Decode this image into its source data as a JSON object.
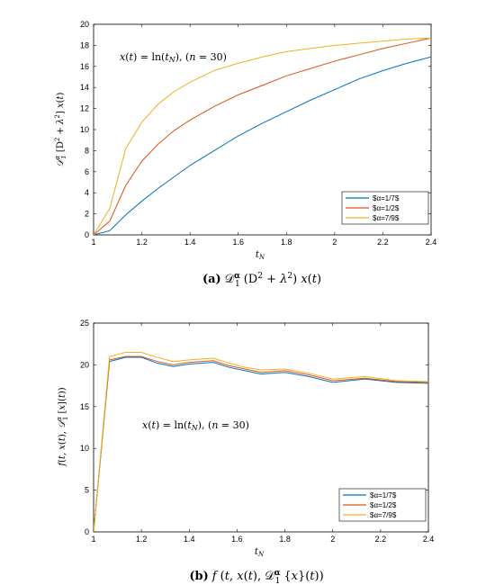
{
  "colors": {
    "blue": "#0072BD",
    "red": "#D95319",
    "yellow": "#EDB120",
    "axis": "#000000",
    "background": "#ffffff"
  },
  "chart_data": [
    {
      "type": "line",
      "annotation": "x(t) = ln(t_N),   (n = 30)",
      "ylabel": "D_1^α (D² + λ²) x(t)",
      "xlabel": "t_N",
      "caption_tag": "(a)",
      "caption_text": "D_1^α (D² + λ²) x(t)",
      "xlim": [
        1,
        2.4
      ],
      "ylim": [
        0,
        20
      ],
      "xticks": [
        1,
        1.2,
        1.4,
        1.6,
        1.8,
        2,
        2.2,
        2.4
      ],
      "xticklabels": [
        "1",
        "1.2",
        "1.4",
        "1.6",
        "1.8",
        "2",
        "2.2",
        "2.4"
      ],
      "yticks": [
        0,
        2,
        4,
        6,
        8,
        10,
        12,
        14,
        16,
        18,
        20
      ],
      "yticklabels": [
        "0",
        "2",
        "4",
        "6",
        "8",
        "10",
        "12",
        "14",
        "16",
        "18",
        "20"
      ],
      "legend_position": "bottom-right",
      "series": [
        {
          "name": "$\\alpha=1/7$",
          "color": "#0072BD",
          "x": [
            1,
            1.0667,
            1.1333,
            1.2,
            1.2667,
            1.3333,
            1.4,
            1.5,
            1.6,
            1.7,
            1.8,
            1.9,
            2,
            2.1,
            2.2,
            2.3,
            2.4
          ],
          "y": [
            0,
            0.4,
            1.9,
            3.2,
            4.4,
            5.5,
            6.6,
            8.0,
            9.4,
            10.6,
            11.7,
            12.8,
            13.8,
            14.8,
            15.6,
            16.3,
            16.9
          ]
        },
        {
          "name": "$\\alpha=1/2$",
          "color": "#D95319",
          "x": [
            1,
            1.0667,
            1.1333,
            1.2,
            1.2667,
            1.3333,
            1.4,
            1.5,
            1.6,
            1.7,
            1.8,
            1.9,
            2,
            2.1,
            2.2,
            2.3,
            2.4
          ],
          "y": [
            0,
            1.3,
            4.7,
            7.0,
            8.6,
            9.9,
            10.9,
            12.2,
            13.3,
            14.2,
            15.1,
            15.8,
            16.5,
            17.1,
            17.7,
            18.2,
            18.7
          ]
        },
        {
          "name": "$\\alpha=7/9$",
          "color": "#EDB120",
          "x": [
            1,
            1.0667,
            1.1333,
            1.2,
            1.2667,
            1.3333,
            1.4,
            1.5,
            1.6,
            1.7,
            1.8,
            1.9,
            2,
            2.1,
            2.2,
            2.3,
            2.4
          ],
          "y": [
            0,
            2.5,
            8.2,
            10.7,
            12.4,
            13.6,
            14.5,
            15.6,
            16.3,
            16.9,
            17.4,
            17.7,
            18.0,
            18.2,
            18.4,
            18.6,
            18.7
          ]
        }
      ]
    },
    {
      "type": "line",
      "annotation": "x(t) = ln(t_N),   (n = 30)",
      "ylabel": "f(t, x(t), D_1^α [x](t))",
      "xlabel": "t_N",
      "caption_tag": "(b)",
      "caption_text": "f (t, x(t), D_1^α{x}(t))",
      "xlim": [
        1,
        2.4
      ],
      "ylim": [
        0,
        25
      ],
      "xticks": [
        1,
        1.2,
        1.4,
        1.6,
        1.8,
        2,
        2.2,
        2.4
      ],
      "xticklabels": [
        "1",
        "1.2",
        "1.4",
        "1.6",
        "1.8",
        "2",
        "2.2",
        "2.4"
      ],
      "yticks": [
        0,
        5,
        10,
        15,
        20,
        25
      ],
      "yticklabels": [
        "0",
        "5",
        "10",
        "15",
        "20",
        "25"
      ],
      "legend_position": "bottom-right",
      "series": [
        {
          "name": "$\\alpha=1/7$",
          "color": "#0072BD",
          "x": [
            1,
            1.0667,
            1.1333,
            1.2,
            1.2667,
            1.3333,
            1.4,
            1.5,
            1.5667,
            1.6333,
            1.7,
            1.8,
            1.9,
            2,
            2.1333,
            2.2667,
            2.4
          ],
          "y": [
            0,
            20.4,
            20.9,
            20.9,
            20.2,
            19.8,
            20.1,
            20.3,
            19.7,
            19.3,
            18.9,
            19.1,
            18.6,
            17.9,
            18.3,
            17.9,
            17.8
          ]
        },
        {
          "name": "$\\alpha=1/2$",
          "color": "#D95319",
          "x": [
            1,
            1.0667,
            1.1333,
            1.2,
            1.2667,
            1.3333,
            1.4,
            1.5,
            1.5667,
            1.6333,
            1.7,
            1.8,
            1.9,
            2,
            2.1333,
            2.2667,
            2.4
          ],
          "y": [
            0,
            20.6,
            21.0,
            21.0,
            20.4,
            20.0,
            20.3,
            20.5,
            19.9,
            19.5,
            19.1,
            19.3,
            18.8,
            18.1,
            18.4,
            18.0,
            17.9
          ]
        },
        {
          "name": "$\\alpha=7/9$",
          "color": "#EDB120",
          "x": [
            1,
            1.0667,
            1.1333,
            1.2,
            1.2667,
            1.3333,
            1.4,
            1.5,
            1.5667,
            1.6333,
            1.7,
            1.8,
            1.9,
            2,
            2.1333,
            2.2667,
            2.4
          ],
          "y": [
            0,
            21.0,
            21.5,
            21.5,
            20.9,
            20.4,
            20.6,
            20.8,
            20.2,
            19.7,
            19.4,
            19.5,
            19.0,
            18.3,
            18.6,
            18.1,
            18.0
          ]
        }
      ]
    }
  ]
}
